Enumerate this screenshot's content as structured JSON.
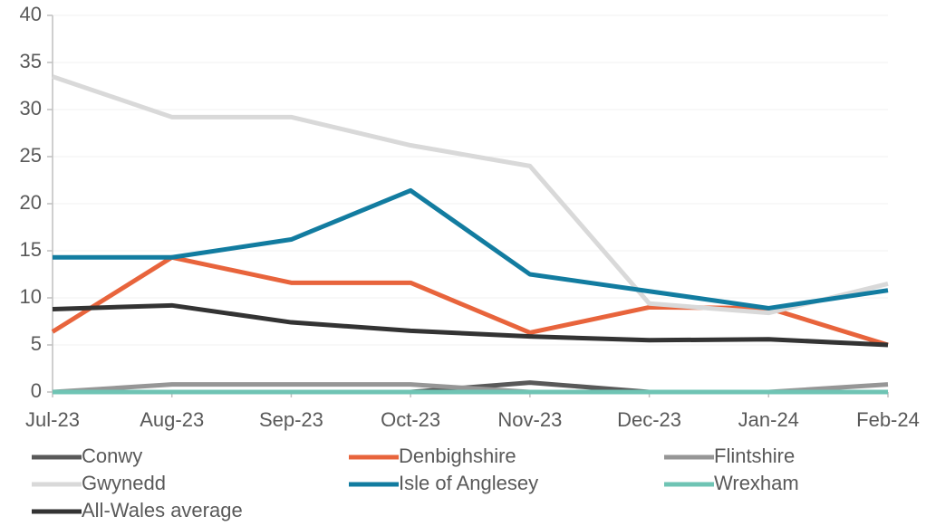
{
  "chart_data": {
    "type": "line",
    "categories": [
      "Jul-23",
      "Aug-23",
      "Sep-23",
      "Oct-23",
      "Nov-23",
      "Dec-23",
      "Jan-24",
      "Feb-24"
    ],
    "series": [
      {
        "name": "Conwy",
        "color": "#595959",
        "values": [
          0,
          0,
          0,
          0,
          1.0,
          0,
          0,
          0
        ]
      },
      {
        "name": "Denbighshire",
        "color": "#e8643c",
        "values": [
          6.4,
          14.3,
          11.6,
          11.6,
          6.3,
          9.0,
          8.9,
          5.0
        ]
      },
      {
        "name": "Flintshire",
        "color": "#969696",
        "values": [
          0,
          0.8,
          0.8,
          0.8,
          0,
          0,
          0,
          0.8
        ]
      },
      {
        "name": "Gwynedd",
        "color": "#d9d9d9",
        "values": [
          33.5,
          29.2,
          29.2,
          26.2,
          24.0,
          9.4,
          8.4,
          11.5
        ]
      },
      {
        "name": "Isle of Anglesey",
        "color": "#127ca0",
        "values": [
          14.3,
          14.3,
          16.2,
          21.4,
          12.5,
          10.7,
          8.9,
          10.8
        ]
      },
      {
        "name": "Wrexham",
        "color": "#6fc4b4",
        "values": [
          0,
          0,
          0,
          0,
          0,
          0,
          0,
          0
        ]
      },
      {
        "name": "All-Wales average",
        "color": "#333333",
        "values": [
          8.8,
          9.2,
          7.4,
          6.5,
          5.9,
          5.5,
          5.6,
          5.0
        ]
      }
    ],
    "ylim": [
      0,
      40
    ],
    "yticks": [
      0,
      5,
      10,
      15,
      20,
      25,
      30,
      35,
      40
    ],
    "grid": true
  }
}
